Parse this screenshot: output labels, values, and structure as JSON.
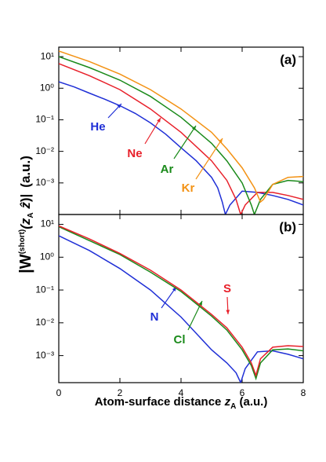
{
  "chart_data": [
    {
      "type": "line",
      "title": "(a)",
      "log_y": true,
      "ylim": [
        0.0001,
        20
      ],
      "xlim": [
        0,
        8
      ],
      "yticks": [
        {
          "value": 10,
          "label": "10¹"
        },
        {
          "value": 1,
          "label": "10⁰"
        },
        {
          "value": 0.1,
          "label": "10⁻¹"
        },
        {
          "value": 0.01,
          "label": "10⁻²"
        },
        {
          "value": 0.001,
          "label": "10⁻³"
        }
      ],
      "ylabel": [
        "|W",
        "(short)",
        "(z",
        "A",
        " ẑ",
        ")|",
        "(a.u.)"
      ],
      "series": [
        {
          "name": "He",
          "color": "#1f2fd6",
          "x": [
            0,
            0.5,
            1,
            1.5,
            2,
            2.5,
            3,
            3.5,
            4,
            4.5,
            5,
            5.2,
            5.35,
            5.45,
            5.6,
            6,
            6.5,
            7,
            7.5,
            8
          ],
          "values": [
            1.6,
            1.1,
            0.7,
            0.45,
            0.28,
            0.16,
            0.08,
            0.035,
            0.013,
            0.005,
            0.0015,
            0.0007,
            0.00025,
            0.0001,
            0.0002,
            0.00055,
            0.0005,
            0.0004,
            0.0003,
            0.0002
          ]
        },
        {
          "name": "Ne",
          "color": "#e8202a",
          "x": [
            0,
            1,
            2,
            3,
            4,
            5,
            5.5,
            5.8,
            5.95,
            6.1,
            6.5,
            7,
            7.5,
            8
          ],
          "values": [
            6,
            2.5,
            0.9,
            0.22,
            0.04,
            0.005,
            0.0012,
            0.0003,
            0.0001,
            0.0002,
            0.0005,
            0.0005,
            0.0004,
            0.0003
          ]
        },
        {
          "name": "Ar",
          "color": "#1a8a1a",
          "x": [
            0,
            1,
            2,
            3,
            4,
            5,
            5.5,
            6,
            6.3,
            6.4,
            6.6,
            7,
            7.5,
            8
          ],
          "values": [
            10,
            4.5,
            1.8,
            0.55,
            0.12,
            0.018,
            0.005,
            0.001,
            0.0002,
            0.0001,
            0.0003,
            0.0009,
            0.0012,
            0.0011
          ]
        },
        {
          "name": "Kr",
          "color": "#f39214",
          "x": [
            0,
            1,
            2,
            3,
            4,
            5,
            5.5,
            6,
            6.4,
            6.6,
            6.7,
            7,
            7.5,
            8
          ],
          "values": [
            15,
            7,
            2.8,
            0.9,
            0.22,
            0.04,
            0.012,
            0.003,
            0.0007,
            0.00025,
            0.0003,
            0.0009,
            0.0015,
            0.0016
          ]
        }
      ]
    },
    {
      "type": "line",
      "title": "(b)",
      "log_y": true,
      "ylim": [
        0.00015,
        20
      ],
      "xlim": [
        0,
        8
      ],
      "xticks": [
        0,
        2,
        4,
        6,
        8
      ],
      "yticks": [
        {
          "value": 10,
          "label": "10¹"
        },
        {
          "value": 1,
          "label": "10⁰"
        },
        {
          "value": 0.1,
          "label": "10⁻¹"
        },
        {
          "value": 0.01,
          "label": "10⁻²"
        },
        {
          "value": 0.001,
          "label": "10⁻³"
        }
      ],
      "xlabel": [
        "Atom-surface distance ",
        "z",
        "A",
        " (a.u.)"
      ],
      "series": [
        {
          "name": "N",
          "color": "#1f2fd6",
          "x": [
            0,
            1,
            2,
            3,
            4,
            5,
            5.5,
            5.8,
            5.95,
            6.1,
            6.5,
            7,
            7.5,
            8
          ],
          "values": [
            4.5,
            1.6,
            0.45,
            0.1,
            0.015,
            0.0015,
            0.0006,
            0.0003,
            0.00015,
            0.0004,
            0.0013,
            0.0014,
            0.0011,
            0.0008
          ]
        },
        {
          "name": "Cl",
          "color": "#1a8a1a",
          "x": [
            0,
            1,
            2,
            3,
            4,
            5,
            5.5,
            6,
            6.3,
            6.45,
            6.6,
            7,
            7.5,
            8
          ],
          "values": [
            8.5,
            3.2,
            1.2,
            0.35,
            0.09,
            0.016,
            0.006,
            0.0015,
            0.0005,
            0.0002,
            0.0006,
            0.0015,
            0.0016,
            0.0014
          ]
        },
        {
          "name": "S",
          "color": "#e8202a",
          "x": [
            0,
            1,
            2,
            3,
            4,
            5,
            5.5,
            6,
            6.3,
            6.45,
            6.6,
            7,
            7.5,
            8
          ],
          "values": [
            9,
            3.6,
            1.3,
            0.4,
            0.1,
            0.018,
            0.007,
            0.0018,
            0.0006,
            0.00025,
            0.0008,
            0.0018,
            0.002,
            0.0019
          ]
        }
      ]
    }
  ]
}
